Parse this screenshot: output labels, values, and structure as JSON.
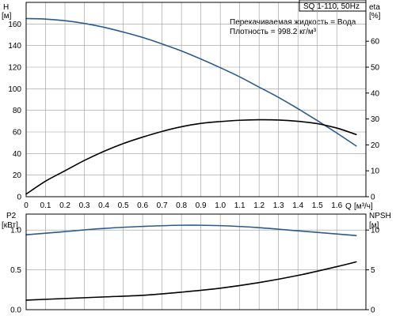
{
  "colors": {
    "blue": "#2b5a8e",
    "black": "#000000"
  },
  "chart_data": [
    {
      "type": "line",
      "title": "SQ 1-110, 50Hz",
      "annotations": [
        "Перекачиваемая жидкость = Вода",
        "Плотность = 998.2 кг/м³"
      ],
      "left_axis": {
        "label": "H",
        "unit": "[м]",
        "ylim": [
          0,
          180
        ],
        "ticks": [
          0,
          20,
          40,
          60,
          80,
          100,
          120,
          140,
          160
        ]
      },
      "right_axis": {
        "label": "eta",
        "unit": "[%]",
        "ylim": [
          0,
          75
        ],
        "ticks": [
          0,
          10,
          20,
          30,
          40,
          50,
          60
        ]
      },
      "x_axis": {
        "label": "Q",
        "unit": "[м³/ч]",
        "xlim": [
          0,
          1.75
        ],
        "ticks": [
          0,
          0.1,
          0.2,
          0.3,
          0.4,
          0.5,
          0.6,
          0.7,
          0.8,
          0.9,
          1.0,
          1.1,
          1.2,
          1.3,
          1.4,
          1.5,
          1.6
        ]
      },
      "grid": true,
      "series": [
        {
          "axis": "left",
          "color": "blue",
          "x": [
            0,
            0.1,
            0.2,
            0.3,
            0.4,
            0.5,
            0.6,
            0.7,
            0.8,
            0.9,
            1.0,
            1.1,
            1.2,
            1.3,
            1.4,
            1.5,
            1.6,
            1.7
          ],
          "values": [
            165,
            164.5,
            163,
            160.5,
            157,
            152.5,
            147.5,
            141.5,
            135,
            127.5,
            119.5,
            111,
            101.5,
            92,
            81.5,
            70.5,
            59,
            47
          ]
        },
        {
          "axis": "right",
          "color": "black",
          "x": [
            0,
            0.1,
            0.2,
            0.3,
            0.4,
            0.5,
            0.6,
            0.7,
            0.8,
            0.9,
            1.0,
            1.1,
            1.2,
            1.3,
            1.4,
            1.5,
            1.6,
            1.7
          ],
          "values": [
            1,
            6,
            10,
            14,
            17.5,
            20.5,
            23,
            25.2,
            27,
            28.3,
            29,
            29.5,
            29.7,
            29.6,
            29.1,
            28.2,
            26.5,
            24
          ]
        }
      ]
    },
    {
      "type": "line",
      "left_axis": {
        "label": "P2",
        "unit": "[кВт]",
        "ylim": [
          0,
          1.2
        ],
        "ticks": [
          0.0,
          0.5,
          1.0
        ]
      },
      "right_axis": {
        "label": "NPSH",
        "unit": "[м]",
        "ylim": [
          0,
          12
        ],
        "ticks": [
          0,
          5,
          10
        ]
      },
      "xlim": [
        0,
        1.75
      ],
      "grid": true,
      "series": [
        {
          "axis": "left",
          "color": "blue",
          "x": [
            0,
            0.2,
            0.4,
            0.6,
            0.8,
            1.0,
            1.2,
            1.4,
            1.6,
            1.7
          ],
          "values": [
            0.94,
            0.98,
            1.02,
            1.045,
            1.06,
            1.055,
            1.03,
            0.99,
            0.95,
            0.93
          ]
        },
        {
          "axis": "right",
          "color": "black",
          "x": [
            0,
            0.2,
            0.4,
            0.6,
            0.8,
            1.0,
            1.2,
            1.4,
            1.6,
            1.7
          ],
          "values": [
            1.2,
            1.4,
            1.6,
            1.8,
            2.2,
            2.7,
            3.4,
            4.3,
            5.4,
            6.0
          ]
        }
      ]
    }
  ]
}
